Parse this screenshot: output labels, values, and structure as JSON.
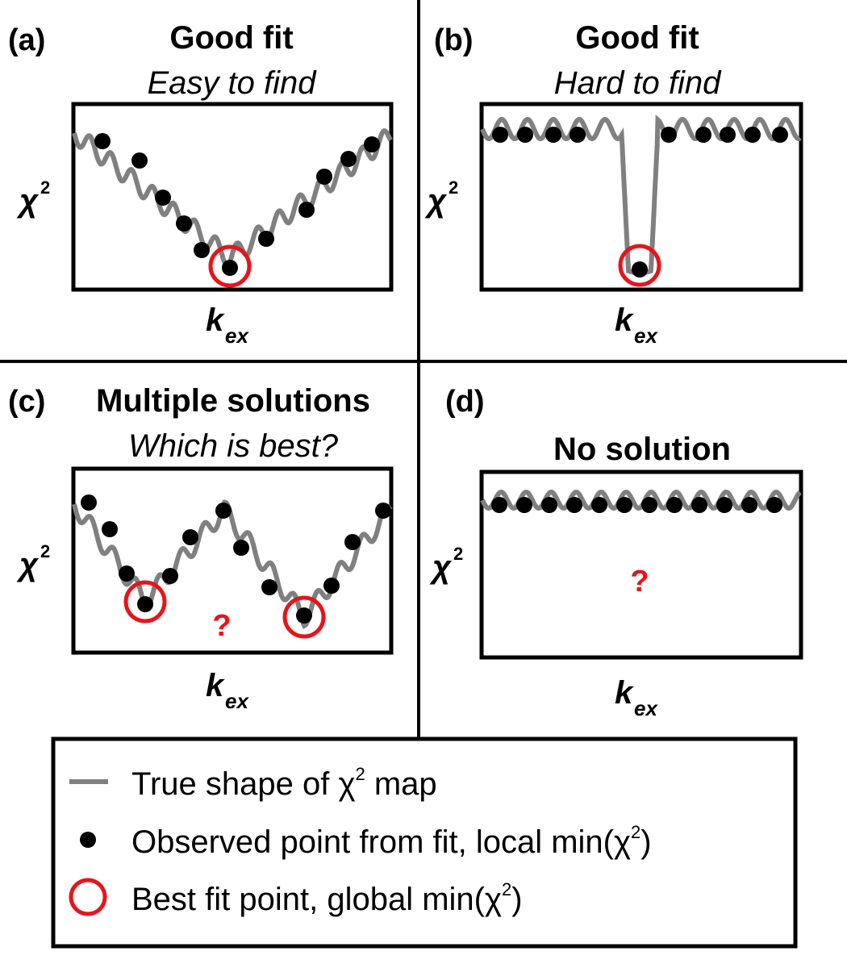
{
  "colors": {
    "curve": "#808080",
    "point": "#000000",
    "circle": "#e8141b",
    "frame": "#000000"
  },
  "panels": [
    {
      "letter": "(a)",
      "title": "Good fit",
      "subtitle": "Easy to find",
      "ylabel": "χ",
      "ylabel_sup": "2",
      "xlabel": "k",
      "xlabel_sub": "ex",
      "question": ""
    },
    {
      "letter": "(b)",
      "title": "Good fit",
      "subtitle": "Hard to find",
      "ylabel": "χ",
      "ylabel_sup": "2",
      "xlabel": "k",
      "xlabel_sub": "ex",
      "question": ""
    },
    {
      "letter": "(c)",
      "title": "Multiple solutions",
      "subtitle": "Which is best?",
      "ylabel": "χ",
      "ylabel_sup": "2",
      "xlabel": "k",
      "xlabel_sub": "ex",
      "question": "?"
    },
    {
      "letter": "(d)",
      "title": "No solution",
      "subtitle": "",
      "ylabel": "χ",
      "ylabel_sup": "2",
      "xlabel": "k",
      "xlabel_sub": "ex",
      "question": "?"
    }
  ],
  "legend": {
    "line_text": "True shape of χ",
    "line_sup": "2",
    "line_tail": " map",
    "point_text": "Observed point from fit, local min(χ",
    "point_sup": "2",
    "point_tail": ")",
    "circle_text": "Best fit point, global min(χ",
    "circle_sup": "2",
    "circle_tail": ")"
  }
}
